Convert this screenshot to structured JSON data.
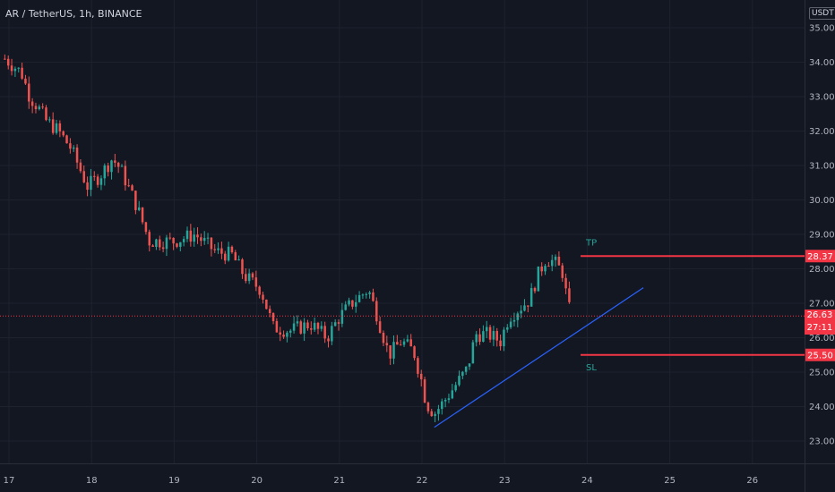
{
  "header": {
    "title": "AR / TetherUS, 1h, BINANCE"
  },
  "price_scale": {
    "currency": "USDT"
  },
  "current_price": {
    "value": "26.63",
    "countdown": "27:11"
  },
  "colors": {
    "bg": "#131722",
    "up": "#26a69a",
    "down": "#ef5350",
    "grid": "#1e222d",
    "level": "#f23645",
    "trend": "#2962ff",
    "label": "#26a69a"
  },
  "annotations": {
    "tp": {
      "text": "TP",
      "price": 28.37,
      "badge": "28.37"
    },
    "sl": {
      "text": "SL",
      "price": 25.5,
      "badge": "25.50"
    }
  },
  "chart_data": {
    "type": "candlestick",
    "title": "AR / TetherUS, 1h, BINANCE",
    "ylim": [
      22.6,
      35.4
    ],
    "y_ticks": [
      "23.00",
      "24.00",
      "25.00",
      "26.00",
      "27.00",
      "28.00",
      "29.00",
      "30.00",
      "31.00",
      "32.00",
      "33.00",
      "34.00",
      "35.00"
    ],
    "x_range_days": [
      16.9,
      27.0
    ],
    "x_ticks": [
      {
        "label": "17",
        "day": 17
      },
      {
        "label": "18",
        "day": 18
      },
      {
        "label": "19",
        "day": 19
      },
      {
        "label": "20",
        "day": 20
      },
      {
        "label": "21",
        "day": 21
      },
      {
        "label": "22",
        "day": 22
      },
      {
        "label": "23",
        "day": 23
      },
      {
        "label": "24",
        "day": 24
      },
      {
        "label": "25",
        "day": 25
      },
      {
        "label": "26",
        "day": 26
      }
    ],
    "candle_interval_hours": 1,
    "close_path": [
      [
        16.95,
        34.1
      ],
      [
        17.0,
        34.0
      ],
      [
        17.15,
        33.7
      ],
      [
        17.25,
        33.0
      ],
      [
        17.35,
        32.7
      ],
      [
        17.45,
        32.3
      ],
      [
        17.6,
        32.0
      ],
      [
        17.75,
        31.5
      ],
      [
        17.95,
        30.4
      ],
      [
        18.1,
        30.7
      ],
      [
        18.25,
        31.2
      ],
      [
        18.35,
        30.9
      ],
      [
        18.55,
        29.8
      ],
      [
        18.7,
        28.8
      ],
      [
        18.85,
        28.8
      ],
      [
        19.0,
        28.8
      ],
      [
        19.25,
        29.0
      ],
      [
        19.5,
        28.5
      ],
      [
        19.7,
        28.4
      ],
      [
        19.85,
        27.8
      ],
      [
        20.05,
        27.4
      ],
      [
        20.2,
        26.3
      ],
      [
        20.4,
        26.2
      ],
      [
        20.65,
        26.4
      ],
      [
        20.85,
        26.0
      ],
      [
        21.0,
        26.6
      ],
      [
        21.15,
        27.0
      ],
      [
        21.35,
        27.4
      ],
      [
        21.45,
        26.7
      ],
      [
        21.6,
        25.5
      ],
      [
        21.75,
        25.9
      ],
      [
        21.9,
        25.6
      ],
      [
        22.0,
        24.7
      ],
      [
        22.05,
        24.1
      ],
      [
        22.15,
        23.8
      ],
      [
        22.25,
        24.1
      ],
      [
        22.4,
        24.6
      ],
      [
        22.55,
        25.1
      ],
      [
        22.65,
        26.1
      ],
      [
        22.8,
        26.1
      ],
      [
        22.95,
        25.9
      ],
      [
        23.05,
        26.6
      ],
      [
        23.2,
        26.9
      ],
      [
        23.3,
        27.1
      ],
      [
        23.4,
        27.8
      ],
      [
        23.5,
        28.3
      ],
      [
        23.6,
        28.2
      ],
      [
        23.7,
        27.9
      ],
      [
        23.75,
        27.2
      ],
      [
        23.8,
        26.63
      ]
    ],
    "levels": [
      {
        "name": "TP",
        "price": 28.37,
        "x_start_day": 23.92
      },
      {
        "name": "SL",
        "price": 25.5,
        "x_start_day": 23.92
      }
    ],
    "trendline": {
      "from": {
        "day": 22.15,
        "price": 23.4
      },
      "to": {
        "day": 24.68,
        "price": 27.45
      }
    },
    "current_price": 26.63
  }
}
